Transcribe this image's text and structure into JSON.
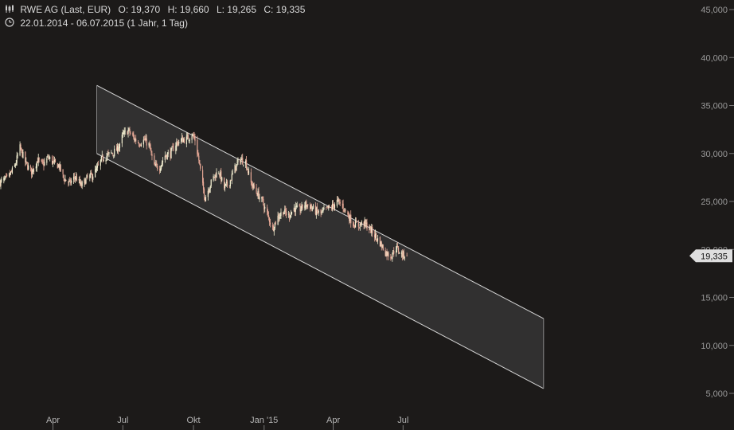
{
  "header": {
    "instrument": "RWE AG (Last, EUR)",
    "open": "O: 19,370",
    "high": "H: 19,660",
    "low": "L: 19,265",
    "close": "C: 19,335",
    "range": "22.01.2014 - 06.07.2015 (1 Jahr, 1 Tag)",
    "chart_icon": "candlestick-icon",
    "clock_icon": "clock-icon"
  },
  "colors": {
    "background": "#1c1a19",
    "candle_up": "#f2eed0",
    "candle_down": "#e7a896",
    "channel_fill": "#343333",
    "channel_line": "#d6d6d6",
    "last_label_bg": "#dedede",
    "last_label_text": "#111111"
  },
  "chart_data": {
    "type": "candlestick",
    "y_axis": {
      "position": "right",
      "ylim": [
        5,
        45
      ],
      "ticks": [
        "5,000",
        "10,000",
        "15,000",
        "20,000",
        "25,000",
        "30,000",
        "35,000",
        "40,000",
        "45,000"
      ]
    },
    "x_axis": {
      "ticks": [
        "Apr",
        "Jul",
        "Okt",
        "Jan '15",
        "Apr",
        "Jul"
      ]
    },
    "last_value": "19,335",
    "channel": {
      "upper": {
        "from": {
          "date": "2014-05-28",
          "value": 37.1
        },
        "to": {
          "date": "2015-12-31",
          "value": 12.8
        }
      },
      "lower": {
        "from": {
          "date": "2014-05-28",
          "value": 30.0
        },
        "to": {
          "date": "2015-12-31",
          "value": 5.5
        }
      }
    },
    "series": [
      {
        "values": [
          [
            "2014-01-22",
            27.0
          ],
          [
            "2014-02-01",
            27.4
          ],
          [
            "2014-02-10",
            28.6
          ],
          [
            "2014-02-17",
            30.6
          ],
          [
            "2014-02-25",
            28.9
          ],
          [
            "2014-03-04",
            28.1
          ],
          [
            "2014-03-12",
            29.3
          ],
          [
            "2014-03-19",
            28.8
          ],
          [
            "2014-03-26",
            29.6
          ],
          [
            "2014-04-02",
            29.0
          ],
          [
            "2014-04-09",
            28.7
          ],
          [
            "2014-04-15",
            27.4
          ],
          [
            "2014-04-23",
            26.9
          ],
          [
            "2014-04-30",
            27.6
          ],
          [
            "2014-05-08",
            26.6
          ],
          [
            "2014-05-15",
            27.4
          ],
          [
            "2014-05-22",
            27.7
          ],
          [
            "2014-05-28",
            28.3
          ],
          [
            "2014-06-04",
            29.5
          ],
          [
            "2014-06-11",
            29.8
          ],
          [
            "2014-06-18",
            30.1
          ],
          [
            "2014-06-24",
            30.4
          ],
          [
            "2014-07-01",
            31.9
          ],
          [
            "2014-07-08",
            32.4
          ],
          [
            "2014-07-15",
            31.6
          ],
          [
            "2014-07-22",
            31.1
          ],
          [
            "2014-07-29",
            31.4
          ],
          [
            "2014-08-04",
            30.9
          ],
          [
            "2014-08-11",
            28.6
          ],
          [
            "2014-08-18",
            28.6
          ],
          [
            "2014-08-25",
            29.8
          ],
          [
            "2014-09-01",
            30.0
          ],
          [
            "2014-09-08",
            31.0
          ],
          [
            "2014-09-15",
            31.4
          ],
          [
            "2014-09-22",
            31.5
          ],
          [
            "2014-09-29",
            32.0
          ],
          [
            "2014-10-03",
            31.4
          ],
          [
            "2014-10-08",
            29.3
          ],
          [
            "2014-10-13",
            26.6
          ],
          [
            "2014-10-16",
            25.4
          ],
          [
            "2014-10-21",
            26.4
          ],
          [
            "2014-10-27",
            27.5
          ],
          [
            "2014-11-03",
            28.2
          ],
          [
            "2014-11-10",
            26.4
          ],
          [
            "2014-11-17",
            27.0
          ],
          [
            "2014-11-24",
            28.5
          ],
          [
            "2014-12-01",
            29.4
          ],
          [
            "2014-12-08",
            29.1
          ],
          [
            "2014-12-15",
            26.9
          ],
          [
            "2014-12-22",
            26.0
          ],
          [
            "2014-12-29",
            25.1
          ],
          [
            "2015-01-06",
            23.5
          ],
          [
            "2015-01-12",
            22.2
          ],
          [
            "2015-01-19",
            23.4
          ],
          [
            "2015-01-26",
            24.0
          ],
          [
            "2015-02-02",
            23.5
          ],
          [
            "2015-02-09",
            24.3
          ],
          [
            "2015-02-16",
            24.1
          ],
          [
            "2015-02-23",
            24.7
          ],
          [
            "2015-03-02",
            24.5
          ],
          [
            "2015-03-09",
            24.0
          ],
          [
            "2015-03-16",
            23.7
          ],
          [
            "2015-03-23",
            24.2
          ],
          [
            "2015-03-30",
            24.4
          ],
          [
            "2015-04-06",
            25.0
          ],
          [
            "2015-04-13",
            24.6
          ],
          [
            "2015-04-20",
            23.6
          ],
          [
            "2015-04-27",
            22.7
          ],
          [
            "2015-05-04",
            22.5
          ],
          [
            "2015-05-11",
            22.8
          ],
          [
            "2015-05-18",
            22.2
          ],
          [
            "2015-05-25",
            21.5
          ],
          [
            "2015-06-01",
            20.7
          ],
          [
            "2015-06-08",
            19.7
          ],
          [
            "2015-06-15",
            19.3
          ],
          [
            "2015-06-22",
            20.2
          ],
          [
            "2015-06-29",
            19.5
          ],
          [
            "2015-07-06",
            19.335
          ]
        ]
      }
    ]
  }
}
